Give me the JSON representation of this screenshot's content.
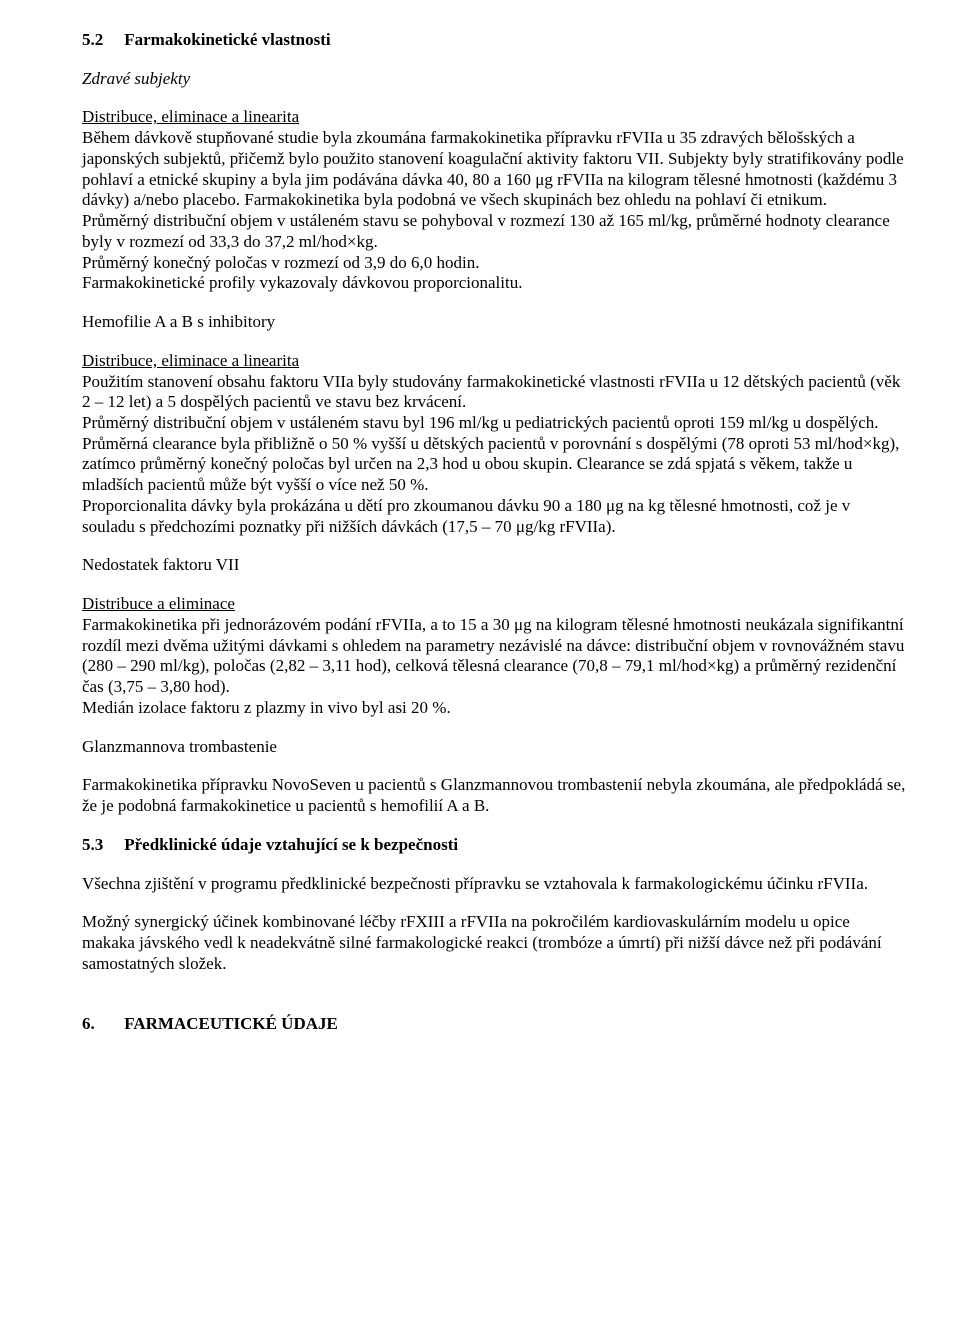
{
  "sec52": {
    "num": "5.2",
    "title": "Farmakokinetické vlastnosti",
    "zdrave_heading": "Zdravé subjekty",
    "dist1_heading": "Distribuce, eliminace a linearita",
    "p1": "Během dávkově stupňované studie byla zkoumána farmakokinetika přípravku rFVIIa u 35 zdravých bělošských a japonských subjektů, přičemž bylo použito stanovení koagulační aktivity faktoru VII. Subjekty byly stratifikovány podle pohlaví a etnické skupiny a byla jim podávána dávka 40, 80 a 160 μg rFVIIa na kilogram tělesné hmotnosti (každému 3 dávky) a/nebo placebo. Farmakokinetika byla podobná ve všech skupinách bez ohledu na pohlaví či etnikum.",
    "p2": "Průměrný distribuční objem v ustáleném stavu se pohyboval v rozmezí 130 až 165 ml/kg, průměrné hodnoty clearance byly v rozmezí od 33,3 do 37,2 ml/hod×kg.",
    "p3": "Průměrný konečný poločas v rozmezí od 3,9 do 6,0 hodin.",
    "p4": "Farmakokinetické profily vykazovaly dávkovou proporcionalitu.",
    "hemo_heading": "Hemofilie A a B s inhibitory",
    "dist2_heading": "Distribuce, eliminace a linearita",
    "p5": "Použitím stanovení obsahu faktoru VIIa byly studovány farmakokinetické vlastnosti rFVIIa u 12 dětských pacientů (věk 2 – 12 let) a 5 dospělých pacientů ve stavu bez krvácení.",
    "p6": "Průměrný distribuční objem v ustáleném stavu byl 196 ml/kg u pediatrických pacientů oproti 159 ml/kg u dospělých.",
    "p7": "Průměrná clearance byla přibližně o 50 % vyšší u dětských pacientů v porovnání s dospělými (78 oproti 53 ml/hod×kg), zatímco průměrný konečný poločas byl určen na 2,3 hod u obou skupin. Clearance se zdá spjatá s věkem, takže u mladších pacientů může být vyšší o více než 50 %.",
    "p8": "Proporcionalita dávky byla prokázána u dětí pro zkoumanou dávku 90 a 180 μg na kg tělesné hmotnosti, což je v souladu s předchozími poznatky při nižších dávkách (17,5 – 70 μg/kg rFVIIa).",
    "nedo_heading": "Nedostatek faktoru VII",
    "dist3_heading": "Distribuce a eliminace",
    "p9": "Farmakokinetika při jednorázovém podání rFVIIa, a to 15 a 30 μg na kilogram tělesné hmotnosti neukázala signifikantní rozdíl mezi dvěma užitými dávkami s ohledem na parametry nezávislé na dávce: distribuční objem v rovnovážném stavu (280 – 290 ml/kg), poločas (2,82 – 3,11 hod), celková tělesná clearance (70,8 – 79,1 ml/hod×kg) a průměrný rezidenční čas (3,75 – 3,80 hod).",
    "p10": "Medián izolace faktoru z plazmy in vivo byl asi 20 %.",
    "glanz_heading": "Glanzmannova trombastenie",
    "p11": "Farmakokinetika přípravku NovoSeven u pacientů s Glanzmannovou trombastenií nebyla zkoumána, ale předpokládá se, že je podobná farmakokinetice u pacientů s hemofilií A a B."
  },
  "sec53": {
    "num": "5.3",
    "title": "Předklinické údaje vztahující se k bezpečnosti",
    "p1": "Všechna zjištění v programu předklinické bezpečnosti přípravku se vztahovala k farmakologickému účinku rFVIIa.",
    "p2": "Možný synergický účinek kombinované léčby rFXIII a rFVIIa na pokročilém kardiovaskulárním modelu u opice makaka jávského vedl k neadekvátně silné farmakologické reakci (trombóze a úmrtí) při nižší dávce než při podávání samostatných složek."
  },
  "sec6": {
    "num": "6.",
    "title": "FARMACEUTICKÉ ÚDAJE"
  }
}
